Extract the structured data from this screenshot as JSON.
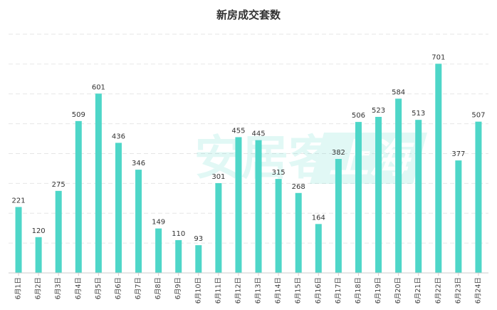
{
  "chart_data": {
    "type": "bar",
    "title": "新房成交套数",
    "categories": [
      "6月1日",
      "6月2日",
      "6月3日",
      "6月4日",
      "6月5日",
      "6月6日",
      "6月7日",
      "6月8日",
      "6月9日",
      "6月10日",
      "6月11日",
      "6月12日",
      "6月13日",
      "6月14日",
      "6月15日",
      "6月16日",
      "6月17日",
      "6月18日",
      "6月19日",
      "6月20日",
      "6月21日",
      "6月22日",
      "6月23日",
      "6月24日"
    ],
    "values": [
      221,
      120,
      275,
      509,
      601,
      436,
      346,
      149,
      110,
      93,
      301,
      455,
      445,
      315,
      268,
      164,
      382,
      506,
      523,
      584,
      513,
      701,
      377,
      507
    ],
    "ylim": [
      0,
      800
    ],
    "grid": true,
    "bar_color": "#4ed6c8",
    "watermark": "安居客上海"
  }
}
